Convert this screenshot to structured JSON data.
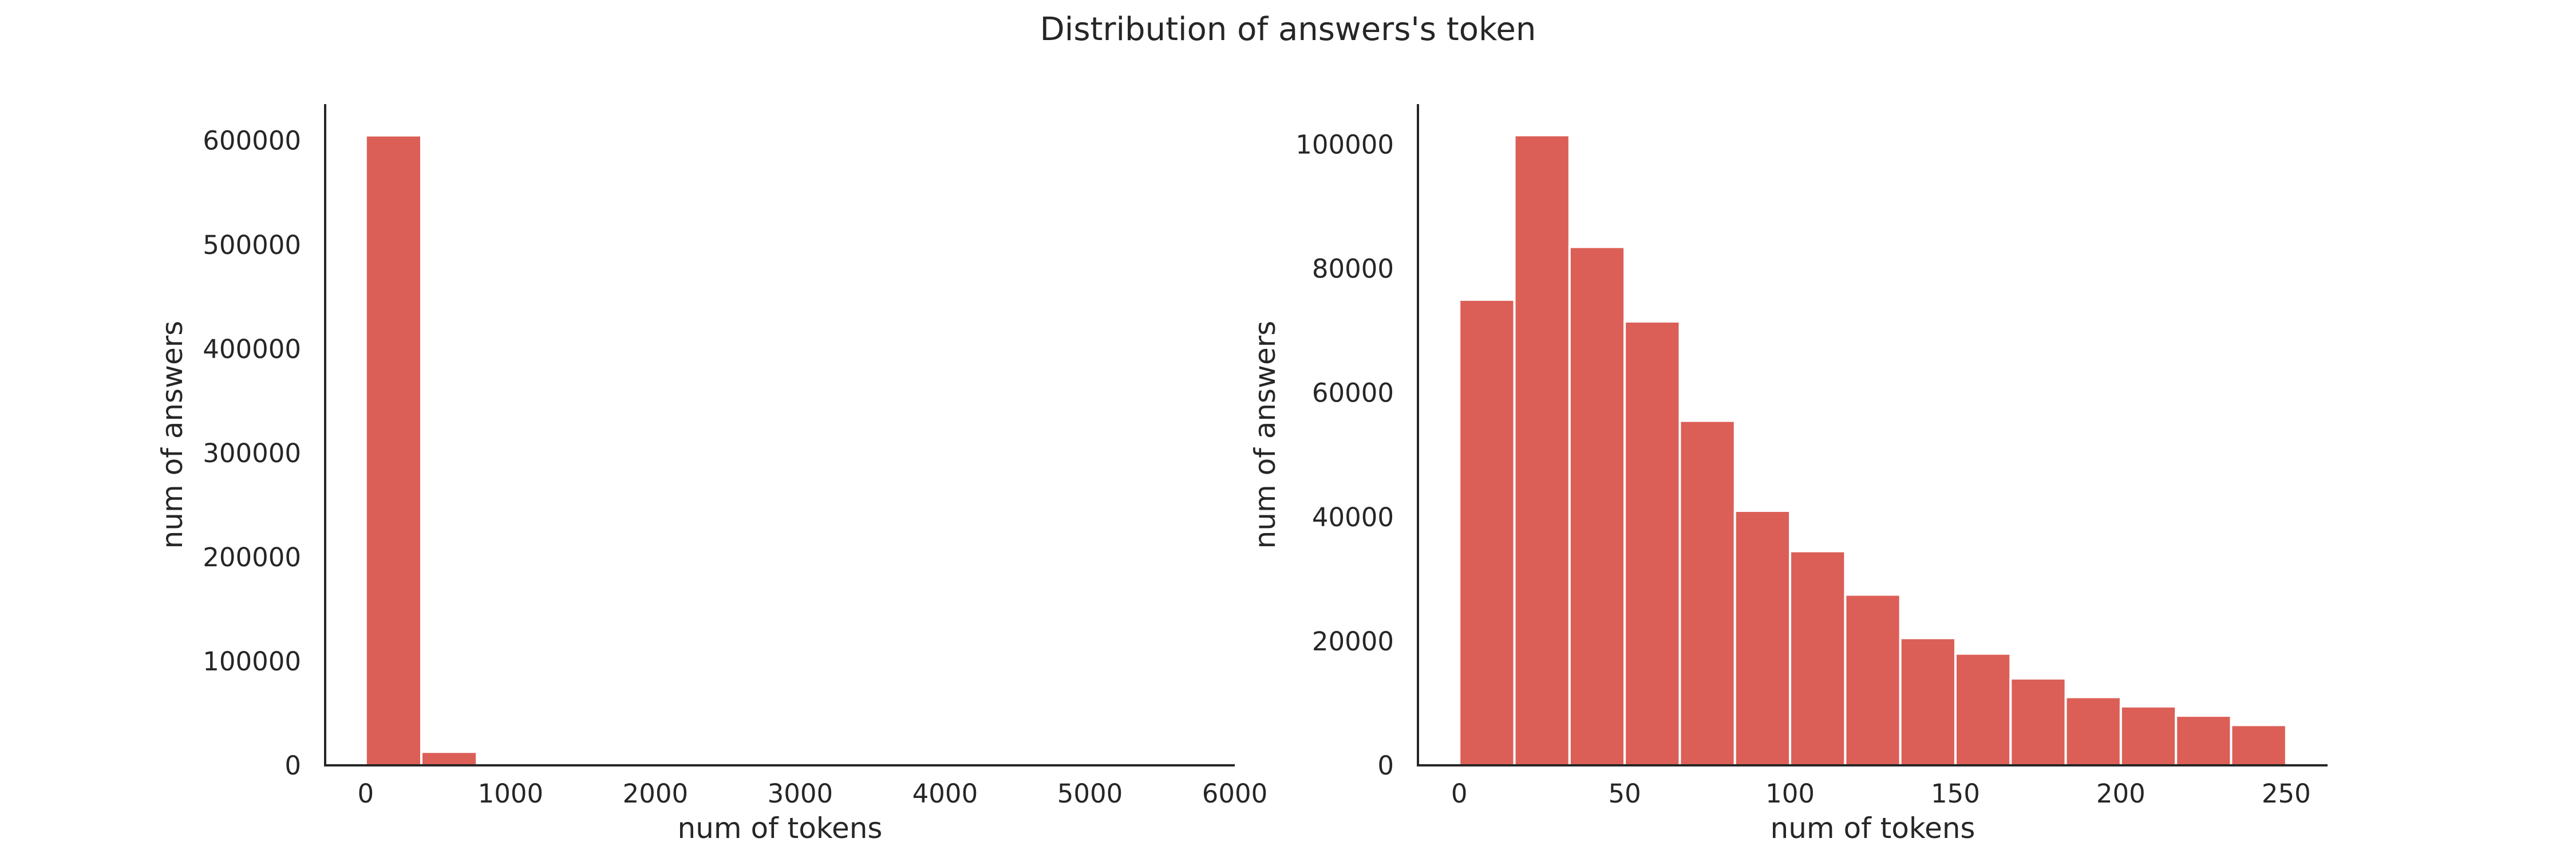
{
  "figure_title": "Distribution of answers's token",
  "colors": {
    "bar": "#db5f57",
    "axis": "#262626",
    "background": "#ffffff"
  },
  "chart_data": [
    {
      "type": "bar",
      "subtype": "histogram",
      "xlabel": "num of tokens",
      "ylabel": "num of answers",
      "xlim": [
        -280,
        6000
      ],
      "ylim": [
        0,
        635000
      ],
      "xticks": [
        0,
        1000,
        2000,
        3000,
        4000,
        5000,
        6000
      ],
      "yticks": [
        0,
        100000,
        200000,
        300000,
        400000,
        500000,
        600000
      ],
      "bin_edges": [
        0,
        384,
        768
      ],
      "values": [
        605000,
        13000
      ],
      "grid": false
    },
    {
      "type": "bar",
      "subtype": "histogram",
      "xlabel": "num of tokens",
      "ylabel": "num of answers",
      "xlim": [
        -12.5,
        262.5
      ],
      "ylim": [
        0,
        106500
      ],
      "xticks": [
        0,
        50,
        100,
        150,
        200,
        250
      ],
      "yticks": [
        0,
        20000,
        40000,
        60000,
        80000,
        100000
      ],
      "bin_edges": [
        0,
        16.67,
        33.33,
        50,
        66.67,
        83.33,
        100,
        116.67,
        133.33,
        150,
        166.67,
        183.33,
        200,
        216.67,
        233.33,
        250
      ],
      "values": [
        75000,
        101500,
        83500,
        71500,
        55500,
        41000,
        34500,
        27500,
        20500,
        18000,
        14000,
        11000,
        9500,
        8000,
        6500
      ],
      "grid": false
    }
  ]
}
